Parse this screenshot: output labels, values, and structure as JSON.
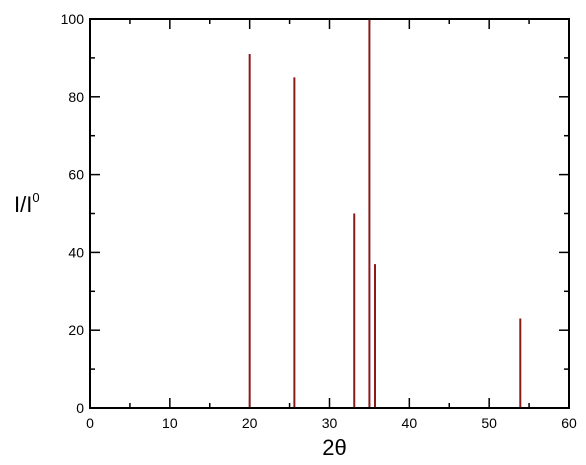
{
  "chart_data": {
    "type": "bar",
    "subtype": "stick-spectrum",
    "title": "",
    "xlabel": "2θ",
    "ylabel": {
      "main": "I/I",
      "superscript": "0"
    },
    "xlim": [
      0,
      60
    ],
    "ylim": [
      0,
      100
    ],
    "xticks_major": [
      0,
      10,
      20,
      30,
      40,
      50,
      60
    ],
    "xticks_minor_step": 5,
    "yticks_major": [
      0,
      20,
      40,
      60,
      80,
      100
    ],
    "yticks_minor_step": 10,
    "grid": false,
    "legend": "none",
    "line_color": "#8b1a1a",
    "series": [
      {
        "x": [
          20.0,
          25.6,
          33.1,
          35.0,
          35.7,
          53.9
        ],
        "y": [
          91,
          85,
          50,
          100,
          37,
          23
        ]
      }
    ]
  }
}
